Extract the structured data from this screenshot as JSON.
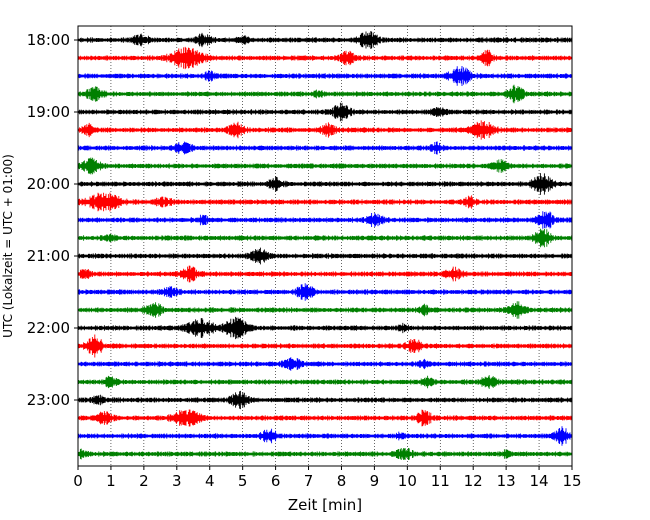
{
  "chart_data": {
    "type": "line",
    "title": "",
    "xlabel": "Zeit  [min]",
    "ylabel": "UTC (Lokalzeit = UTC + 01:00)",
    "xlim": [
      0,
      15
    ],
    "x_ticks": [
      0,
      1,
      2,
      3,
      4,
      5,
      6,
      7,
      8,
      9,
      10,
      11,
      12,
      13,
      14,
      15
    ],
    "x_tick_labels": [
      "0",
      "1",
      "2",
      "3",
      "4",
      "5",
      "6",
      "7",
      "8",
      "9",
      "10",
      "11",
      "12",
      "13",
      "14",
      "15"
    ],
    "y_tick_labels": [
      {
        "label": "18:00",
        "row": 0
      },
      {
        "label": "19:00",
        "row": 4
      },
      {
        "label": "20:00",
        "row": 8
      },
      {
        "label": "21:00",
        "row": 12
      },
      {
        "label": "22:00",
        "row": 16
      },
      {
        "label": "23:00",
        "row": 20
      }
    ],
    "grid": "vertical dotted at each minute",
    "color_cycle": [
      "#000000",
      "#ff0000",
      "#0000ff",
      "#008000"
    ],
    "series": [
      {
        "name": "18:00",
        "color": "#000000",
        "bursts": [
          [
            1.9,
            0.3,
            0.5
          ],
          [
            3.8,
            0.3,
            0.5
          ],
          [
            5.0,
            0.2,
            0.4
          ],
          [
            8.8,
            0.35,
            0.9
          ]
        ]
      },
      {
        "name": "18:15",
        "color": "#ff0000",
        "bursts": [
          [
            3.3,
            0.6,
            1.0
          ],
          [
            8.2,
            0.3,
            0.6
          ],
          [
            12.4,
            0.2,
            0.9
          ]
        ]
      },
      {
        "name": "18:30",
        "color": "#0000ff",
        "bursts": [
          [
            4.0,
            0.2,
            0.4
          ],
          [
            11.6,
            0.4,
            0.9
          ]
        ]
      },
      {
        "name": "18:45",
        "color": "#008000",
        "bursts": [
          [
            0.5,
            0.3,
            0.6
          ],
          [
            7.3,
            0.2,
            0.3
          ],
          [
            13.3,
            0.3,
            0.8
          ]
        ]
      },
      {
        "name": "19:00",
        "color": "#000000",
        "bursts": [
          [
            8.0,
            0.3,
            0.9
          ],
          [
            11.0,
            0.3,
            0.4
          ]
        ]
      },
      {
        "name": "19:15",
        "color": "#ff0000",
        "bursts": [
          [
            0.3,
            0.2,
            0.6
          ],
          [
            4.8,
            0.3,
            0.7
          ],
          [
            7.6,
            0.3,
            0.6
          ],
          [
            12.3,
            0.4,
            0.9
          ]
        ]
      },
      {
        "name": "19:30",
        "color": "#0000ff",
        "bursts": [
          [
            3.2,
            0.3,
            0.5
          ],
          [
            10.9,
            0.2,
            0.5
          ]
        ]
      },
      {
        "name": "19:45",
        "color": "#008000",
        "bursts": [
          [
            0.4,
            0.3,
            0.8
          ],
          [
            12.8,
            0.3,
            0.6
          ]
        ]
      },
      {
        "name": "20:00",
        "color": "#000000",
        "bursts": [
          [
            6.0,
            0.3,
            0.6
          ],
          [
            14.1,
            0.35,
            1.0
          ]
        ]
      },
      {
        "name": "20:15",
        "color": "#ff0000",
        "bursts": [
          [
            0.8,
            0.6,
            0.9
          ],
          [
            2.6,
            0.3,
            0.4
          ],
          [
            11.9,
            0.2,
            0.5
          ]
        ]
      },
      {
        "name": "20:30",
        "color": "#0000ff",
        "bursts": [
          [
            3.8,
            0.2,
            0.4
          ],
          [
            9.0,
            0.3,
            0.6
          ],
          [
            14.2,
            0.3,
            0.9
          ]
        ]
      },
      {
        "name": "20:45",
        "color": "#008000",
        "bursts": [
          [
            1.0,
            0.2,
            0.3
          ],
          [
            14.1,
            0.3,
            1.0
          ]
        ]
      },
      {
        "name": "21:00",
        "color": "#000000",
        "bursts": [
          [
            5.5,
            0.3,
            0.8
          ]
        ]
      },
      {
        "name": "21:15",
        "color": "#ff0000",
        "bursts": [
          [
            0.2,
            0.2,
            0.5
          ],
          [
            3.4,
            0.3,
            0.7
          ],
          [
            11.4,
            0.3,
            0.6
          ]
        ]
      },
      {
        "name": "21:30",
        "color": "#0000ff",
        "bursts": [
          [
            2.8,
            0.3,
            0.4
          ],
          [
            6.9,
            0.3,
            0.8
          ]
        ]
      },
      {
        "name": "21:45",
        "color": "#008000",
        "bursts": [
          [
            2.3,
            0.3,
            0.7
          ],
          [
            10.5,
            0.2,
            0.5
          ],
          [
            13.3,
            0.3,
            0.9
          ]
        ]
      },
      {
        "name": "22:00",
        "color": "#000000",
        "bursts": [
          [
            3.7,
            0.5,
            0.9
          ],
          [
            4.8,
            0.4,
            1.0
          ],
          [
            9.9,
            0.2,
            0.3
          ]
        ]
      },
      {
        "name": "22:15",
        "color": "#ff0000",
        "bursts": [
          [
            0.5,
            0.3,
            1.0
          ],
          [
            10.2,
            0.3,
            0.6
          ]
        ]
      },
      {
        "name": "22:30",
        "color": "#0000ff",
        "bursts": [
          [
            6.5,
            0.3,
            0.6
          ],
          [
            10.5,
            0.2,
            0.3
          ]
        ]
      },
      {
        "name": "22:45",
        "color": "#008000",
        "bursts": [
          [
            1.0,
            0.2,
            0.6
          ],
          [
            10.6,
            0.2,
            0.5
          ],
          [
            12.5,
            0.3,
            0.6
          ]
        ]
      },
      {
        "name": "23:00",
        "color": "#000000",
        "bursts": [
          [
            0.6,
            0.2,
            0.4
          ],
          [
            4.9,
            0.3,
            0.8
          ]
        ]
      },
      {
        "name": "23:15",
        "color": "#ff0000",
        "bursts": [
          [
            0.8,
            0.3,
            0.6
          ],
          [
            3.3,
            0.5,
            0.8
          ],
          [
            10.5,
            0.3,
            0.7
          ]
        ]
      },
      {
        "name": "23:30",
        "color": "#0000ff",
        "bursts": [
          [
            5.8,
            0.3,
            0.6
          ],
          [
            9.8,
            0.15,
            0.3
          ],
          [
            14.7,
            0.3,
            0.8
          ]
        ]
      },
      {
        "name": "23:45",
        "color": "#008000",
        "bursts": [
          [
            0.1,
            0.2,
            0.3
          ],
          [
            9.9,
            0.3,
            0.6
          ],
          [
            13.0,
            0.15,
            0.3
          ]
        ]
      }
    ]
  }
}
